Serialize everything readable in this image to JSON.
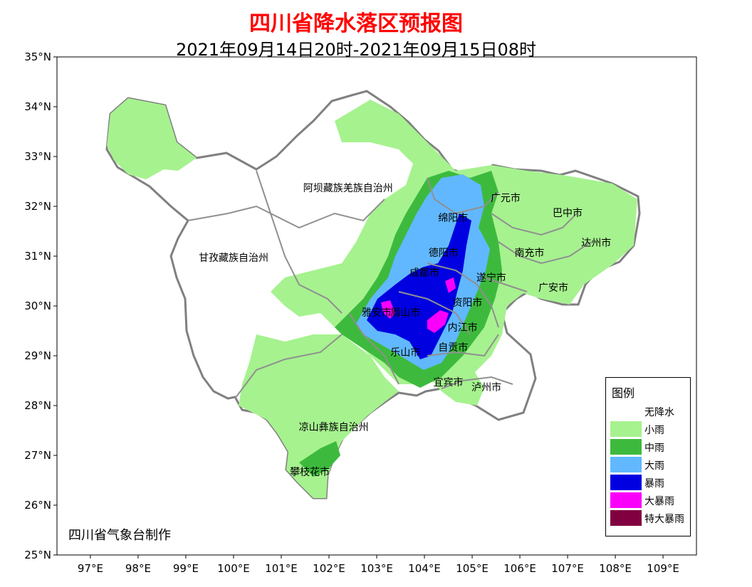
{
  "title": "四川省降水落区预报图",
  "subtitle": "2021年09月14日20时-2021年09月15日08时",
  "credit": "四川省气象台制作",
  "axes": {
    "lon_labels": [
      "97°E",
      "98°E",
      "99°E",
      "100°E",
      "101°E",
      "102°E",
      "103°E",
      "104°E",
      "105°E",
      "106°E",
      "107°E",
      "108°E",
      "109°E"
    ],
    "lat_labels": [
      "35°N",
      "34°N",
      "33°N",
      "32°N",
      "31°N",
      "30°N",
      "29°N",
      "28°N",
      "27°N",
      "26°N",
      "25°N"
    ],
    "lon_range": [
      96.3,
      109.7
    ],
    "lat_range": [
      25,
      35
    ]
  },
  "places": [
    {
      "name": "阿坝藏族羌族自治州",
      "lon": 102.4,
      "lat": 32.3
    },
    {
      "name": "甘孜藏族自治州",
      "lon": 100.0,
      "lat": 30.9
    },
    {
      "name": "凉山彝族自治州",
      "lon": 102.1,
      "lat": 27.5
    },
    {
      "name": "攀枝花市",
      "lon": 101.6,
      "lat": 26.6
    },
    {
      "name": "广元市",
      "lon": 105.7,
      "lat": 32.1
    },
    {
      "name": "巴中市",
      "lon": 107.0,
      "lat": 31.8
    },
    {
      "name": "绵阳市",
      "lon": 104.6,
      "lat": 31.7
    },
    {
      "name": "达州市",
      "lon": 107.6,
      "lat": 31.2
    },
    {
      "name": "南充市",
      "lon": 106.2,
      "lat": 31.0
    },
    {
      "name": "德阳市",
      "lon": 104.4,
      "lat": 31.0
    },
    {
      "name": "成都市",
      "lon": 104.0,
      "lat": 30.6
    },
    {
      "name": "遂宁市",
      "lon": 105.4,
      "lat": 30.5
    },
    {
      "name": "广安市",
      "lon": 106.7,
      "lat": 30.3
    },
    {
      "name": "资阳市",
      "lon": 104.9,
      "lat": 30.0
    },
    {
      "name": "雅安市",
      "lon": 103.0,
      "lat": 29.8
    },
    {
      "name": "眉山市",
      "lon": 103.6,
      "lat": 29.8
    },
    {
      "name": "内江市",
      "lon": 104.8,
      "lat": 29.5
    },
    {
      "name": "乐山市",
      "lon": 103.6,
      "lat": 29.0
    },
    {
      "name": "自贡市",
      "lon": 104.6,
      "lat": 29.1
    },
    {
      "name": "宜宾市",
      "lon": 104.5,
      "lat": 28.4
    },
    {
      "name": "泸州市",
      "lon": 105.3,
      "lat": 28.3
    }
  ],
  "legend": {
    "title": "图例",
    "items": [
      {
        "label": "无降水",
        "color": "#ffffff"
      },
      {
        "label": "小雨",
        "color": "#a6f28f"
      },
      {
        "label": "中雨",
        "color": "#3dba3d"
      },
      {
        "label": "大雨",
        "color": "#61b8ff"
      },
      {
        "label": "暴雨",
        "color": "#0000e1"
      },
      {
        "label": "大暴雨",
        "color": "#fa00fa"
      },
      {
        "label": "特大暴雨",
        "color": "#800040"
      }
    ]
  }
}
